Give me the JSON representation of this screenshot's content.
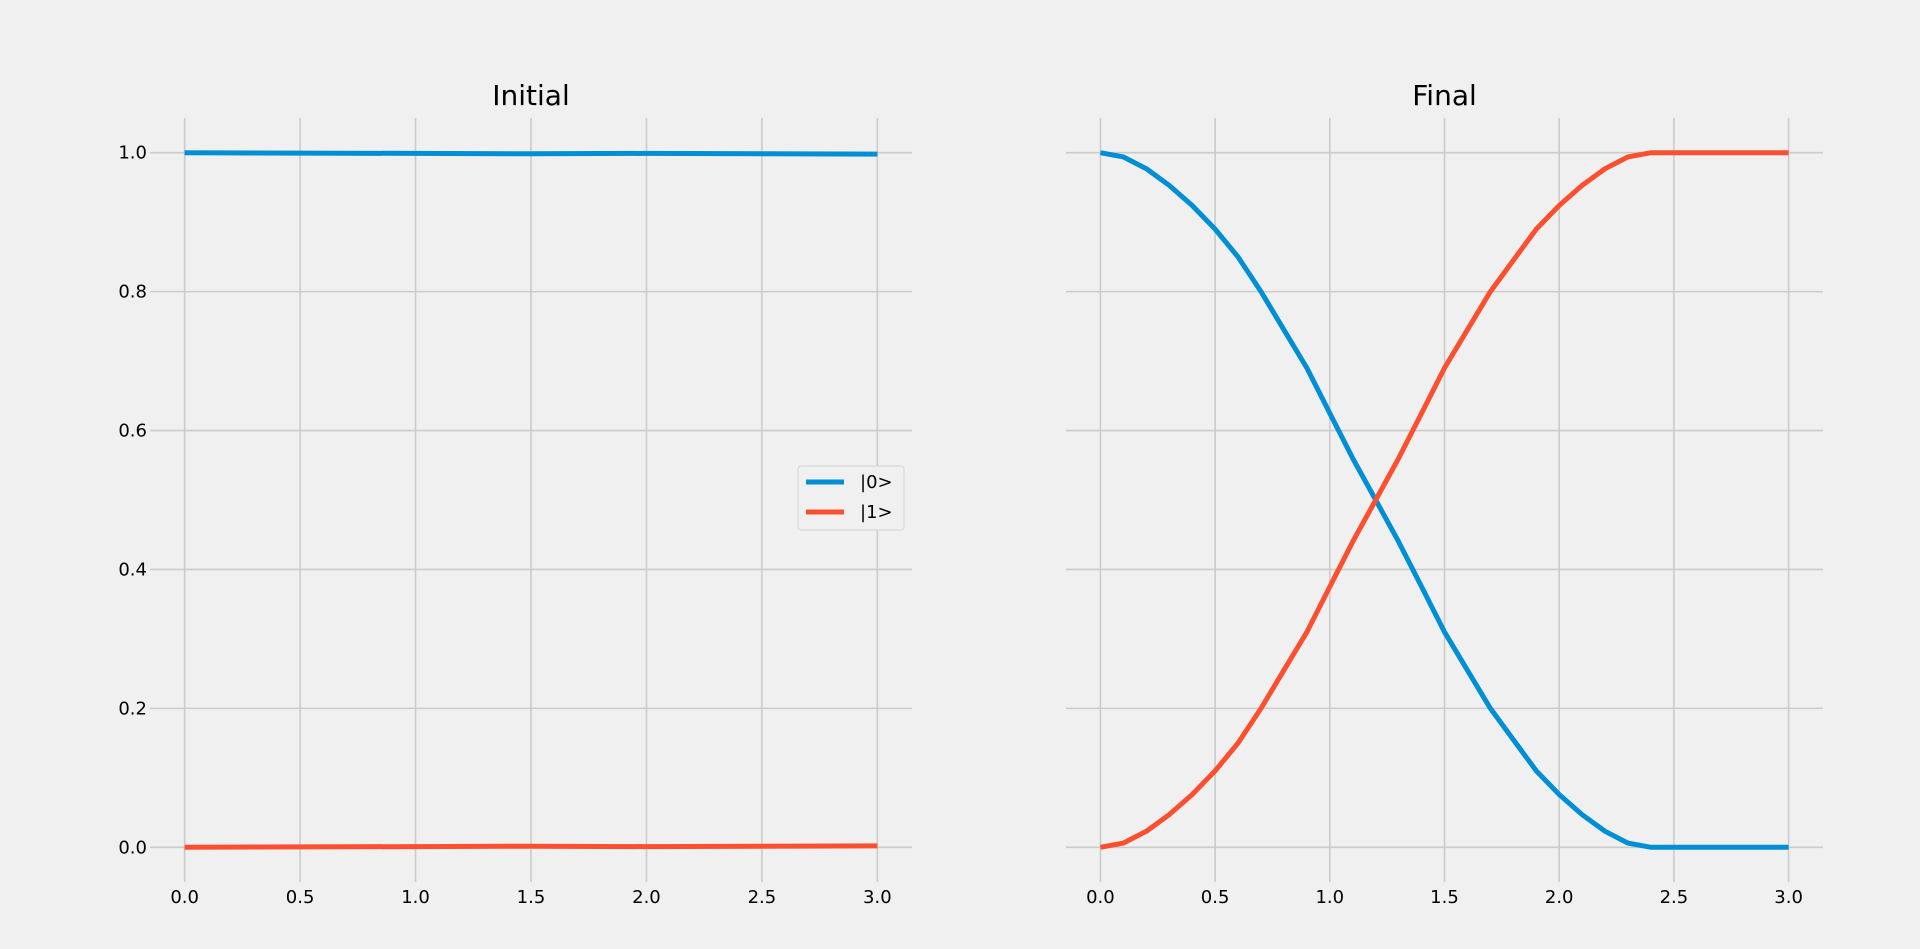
{
  "chart_data": [
    {
      "type": "line",
      "title": "Initial",
      "xlabel": "",
      "ylabel": "",
      "xlim": [
        -0.15,
        3.15
      ],
      "ylim": [
        -0.05,
        1.05
      ],
      "xticks": [
        "0.0",
        "0.5",
        "1.0",
        "1.5",
        "2.0",
        "2.5",
        "3.0"
      ],
      "yticks": [
        "0.0",
        "0.2",
        "0.4",
        "0.6",
        "0.8",
        "1.0"
      ],
      "grid": true,
      "legend": "center-right",
      "x": [
        0.0,
        0.5,
        1.0,
        1.5,
        2.0,
        2.5,
        3.0
      ],
      "series": [
        {
          "name": "|0>",
          "color": "#008fd5",
          "values": [
            1.0,
            0.9995,
            0.999,
            0.9985,
            0.999,
            0.9985,
            0.998
          ]
        },
        {
          "name": "|1>",
          "color": "#fc4f30",
          "values": [
            0.0,
            0.0005,
            0.001,
            0.0015,
            0.001,
            0.0015,
            0.002
          ]
        }
      ]
    },
    {
      "type": "line",
      "title": "Final",
      "xlabel": "",
      "ylabel": "",
      "xlim": [
        -0.15,
        3.15
      ],
      "ylim": [
        -0.05,
        1.05
      ],
      "xticks": [
        "0.0",
        "0.5",
        "1.0",
        "1.5",
        "2.0",
        "2.5",
        "3.0"
      ],
      "yticks": [],
      "grid": true,
      "x": [
        0.0,
        0.1,
        0.2,
        0.3,
        0.4,
        0.5,
        0.6,
        0.7,
        0.8,
        0.9,
        1.0,
        1.1,
        1.2,
        1.3,
        1.4,
        1.5,
        1.6,
        1.7,
        1.8,
        1.9,
        2.0,
        2.1,
        2.2,
        2.3,
        2.4,
        2.5,
        2.6,
        2.7,
        2.8,
        2.9,
        3.0
      ],
      "series": [
        {
          "name": "|0>",
          "color": "#008fd5",
          "values": [
            1.0,
            0.994,
            0.977,
            0.953,
            0.924,
            0.89,
            0.85,
            0.8,
            0.745,
            0.69,
            0.625,
            0.56,
            0.5,
            0.44,
            0.375,
            0.31,
            0.255,
            0.2,
            0.155,
            0.11,
            0.076,
            0.047,
            0.023,
            0.006,
            0.0,
            0.0,
            0.0,
            0.0,
            0.0,
            0.0,
            0.0
          ]
        },
        {
          "name": "|1>",
          "color": "#fc4f30",
          "values": [
            0.0,
            0.006,
            0.023,
            0.047,
            0.076,
            0.11,
            0.15,
            0.2,
            0.255,
            0.31,
            0.375,
            0.44,
            0.5,
            0.56,
            0.625,
            0.69,
            0.745,
            0.8,
            0.845,
            0.89,
            0.924,
            0.953,
            0.977,
            0.994,
            1.0,
            1.0,
            1.0,
            1.0,
            1.0,
            1.0,
            1.0
          ]
        }
      ]
    }
  ]
}
